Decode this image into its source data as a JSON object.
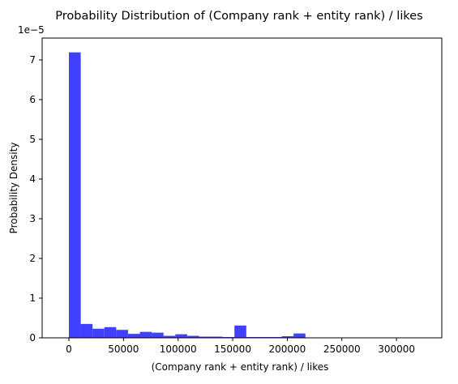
{
  "chart_data": {
    "type": "bar",
    "subtype": "histogram",
    "title": "Probability Distribution of (Company rank + entity rank) / likes",
    "xlabel": "(Company rank + entity rank) / likes",
    "ylabel": "Probability Density",
    "y_multiplier_label": "1e−5",
    "y_scale": 1e-05,
    "xlim": [
      -24500,
      341500
    ],
    "ylim": [
      0,
      7.55
    ],
    "x_ticks": [
      0,
      50000,
      100000,
      150000,
      200000,
      250000,
      300000
    ],
    "x_tick_labels": [
      "0",
      "50000",
      "100000",
      "150000",
      "200000",
      "250000",
      "300000"
    ],
    "y_ticks": [
      0,
      1,
      2,
      3,
      4,
      5,
      6,
      7
    ],
    "y_tick_labels": [
      "0",
      "1",
      "2",
      "3",
      "4",
      "5",
      "6",
      "7"
    ],
    "bin_start": 0,
    "bin_width": 10830,
    "values": [
      7.19,
      0.35,
      0.23,
      0.27,
      0.2,
      0.1,
      0.15,
      0.13,
      0.05,
      0.09,
      0.05,
      0.03,
      0.03,
      0.02,
      0.31,
      0.02,
      0.02,
      0.02,
      0.04,
      0.11,
      0,
      0,
      0,
      0,
      0,
      0,
      0,
      0,
      0,
      0.01
    ],
    "bar_color": "#4040ff",
    "grid": false,
    "legend": "none"
  }
}
